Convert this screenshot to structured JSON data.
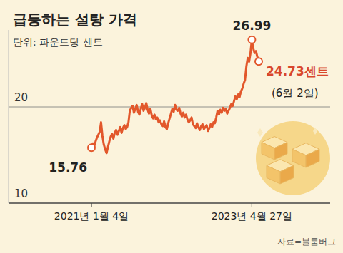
{
  "chart_data": {
    "type": "line",
    "title": "급등하는 설탕 가격",
    "subtitle": "단위: 파운드당 센트",
    "categories": [
      "2021년 1월 4일",
      null,
      null,
      null,
      null,
      null,
      null,
      null,
      null,
      null,
      null,
      null,
      null,
      null,
      null,
      null,
      null,
      null,
      null,
      null,
      null,
      null,
      null,
      null,
      null,
      null,
      null,
      null,
      null,
      null,
      null,
      null,
      null,
      null,
      null,
      null,
      null,
      null,
      null,
      null,
      null,
      null,
      null,
      null,
      null,
      null,
      null,
      null,
      null,
      null,
      null,
      null,
      null,
      null,
      null,
      null,
      null,
      null,
      null,
      null,
      null,
      null,
      null,
      null,
      null,
      null,
      null,
      null,
      null,
      null,
      null,
      null,
      null,
      null,
      null,
      null,
      null,
      null,
      null,
      null,
      null,
      null,
      null,
      null,
      null,
      null,
      null,
      null,
      null,
      null,
      null,
      null,
      null,
      null,
      null,
      null,
      null,
      null,
      null,
      null,
      null,
      null,
      null,
      null,
      null,
      null,
      null,
      null,
      null,
      null,
      null,
      null,
      null,
      null,
      null,
      null,
      null,
      "2023년 4월 27일",
      null,
      null,
      null,
      null,
      null
    ],
    "values": [
      15.76,
      16.2,
      15.9,
      16.4,
      16.8,
      17.1,
      17.4,
      18.4,
      17.0,
      16.1,
      15.6,
      15.2,
      15.8,
      16.4,
      16.9,
      17.2,
      16.7,
      17.3,
      17.6,
      17.1,
      17.5,
      17.9,
      17.3,
      17.8,
      18.1,
      17.7,
      17.9,
      18.4,
      19.6,
      19.9,
      20.1,
      19.4,
      19.8,
      20.2,
      19.5,
      19.2,
      19.8,
      20.3,
      19.6,
      19.9,
      20.4,
      19.7,
      19.3,
      19.8,
      19.1,
      18.8,
      19.2,
      18.7,
      18.9,
      18.4,
      18.6,
      18.2,
      18.0,
      18.5,
      17.9,
      17.7,
      18.3,
      18.8,
      19.3,
      19.8,
      19.5,
      20.2,
      19.7,
      19.6,
      19.9,
      19.3,
      19.0,
      19.4,
      18.9,
      19.2,
      18.7,
      18.4,
      18.6,
      18.9,
      18.2,
      18.0,
      17.8,
      18.3,
      17.9,
      17.6,
      18.0,
      18.2,
      17.7,
      17.9,
      18.1,
      17.5,
      17.8,
      18.2,
      17.9,
      18.4,
      18.3,
      18.9,
      19.6,
      19.2,
      19.7,
      19.4,
      19.9,
      19.6,
      19.8,
      19.3,
      19.6,
      19.9,
      20.3,
      20.1,
      20.6,
      21.1,
      20.8,
      21.3,
      21.0,
      21.6,
      21.9,
      22.4,
      22.8,
      24.2,
      25.1,
      24.7,
      25.6,
      26.99,
      26.1,
      25.6,
      25.8,
      25.2,
      24.73
    ],
    "value_labels": [
      "15.76",
      null,
      null,
      null,
      null,
      null,
      null,
      null,
      null,
      null,
      null,
      null,
      null,
      null,
      null,
      null,
      null,
      null,
      null,
      null,
      null,
      null,
      null,
      null,
      null,
      null,
      null,
      null,
      null,
      null,
      null,
      null,
      null,
      null,
      null,
      null,
      null,
      null,
      null,
      null,
      null,
      null,
      null,
      null,
      null,
      null,
      null,
      null,
      null,
      null,
      null,
      null,
      null,
      null,
      null,
      null,
      null,
      null,
      null,
      null,
      null,
      null,
      null,
      null,
      null,
      null,
      null,
      null,
      null,
      null,
      null,
      null,
      null,
      null,
      null,
      null,
      null,
      null,
      null,
      null,
      null,
      null,
      null,
      null,
      null,
      null,
      null,
      null,
      null,
      null,
      null,
      null,
      null,
      null,
      null,
      null,
      null,
      null,
      null,
      null,
      null,
      null,
      null,
      null,
      null,
      null,
      null,
      null,
      null,
      null,
      null,
      null,
      null,
      null,
      null,
      null,
      null,
      "26.99",
      null,
      null,
      null,
      null,
      "24.73센트"
    ],
    "color": "#e2572b",
    "ylim": [
      10,
      28
    ],
    "yticks": [
      10,
      20
    ],
    "grid": true,
    "annotations": [
      "(6월 2일)"
    ],
    "source": "자료=블룸버그"
  }
}
